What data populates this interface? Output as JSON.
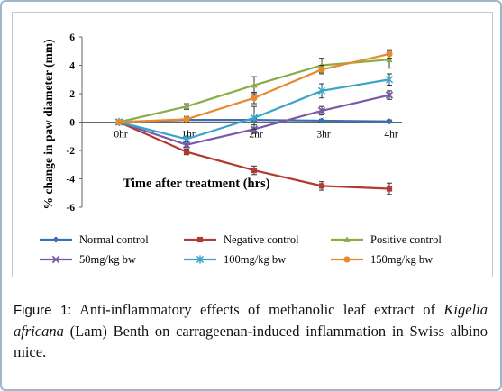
{
  "chart_data": {
    "type": "line",
    "categories": [
      "0hr",
      "1hr",
      "2hr",
      "3hr",
      "4hr"
    ],
    "xlabel": "Time after treatment (hrs)",
    "ylabel": "% change in paw diameter (mm)",
    "ylim": [
      -6,
      6
    ],
    "yticks": [
      "-6",
      "-4",
      "-2",
      "0",
      "2",
      "4",
      "6"
    ],
    "grid": false,
    "legend_position": "bottom",
    "series": [
      {
        "name": "Normal control",
        "color": "#3a6fb0",
        "marker": "diamond",
        "values": [
          0,
          0.15,
          0.15,
          0.1,
          0.05
        ],
        "errors": [
          0.1,
          0.1,
          0.1,
          0.1,
          0.1
        ]
      },
      {
        "name": "Negative control",
        "color": "#b23a32",
        "marker": "square",
        "values": [
          0,
          -2.1,
          -3.4,
          -4.5,
          -4.7
        ],
        "errors": [
          0.1,
          0.2,
          0.3,
          0.3,
          0.4
        ]
      },
      {
        "name": "Positive control",
        "color": "#8aac45",
        "marker": "triangle",
        "values": [
          0,
          1.1,
          2.6,
          4.0,
          4.4
        ],
        "errors": [
          0.1,
          0.2,
          0.6,
          0.5,
          0.6
        ]
      },
      {
        "name": "50mg/kg bw",
        "color": "#7a5aa8",
        "marker": "x",
        "values": [
          0,
          -1.6,
          -0.5,
          0.8,
          1.9
        ],
        "errors": [
          0.1,
          0.2,
          0.3,
          0.3,
          0.3
        ]
      },
      {
        "name": "100mg/kg bw",
        "color": "#3aa4c8",
        "marker": "star",
        "values": [
          0,
          -1.2,
          0.3,
          2.2,
          3.0
        ],
        "errors": [
          0.1,
          0.2,
          0.8,
          0.5,
          0.4
        ]
      },
      {
        "name": "150mg/kg bw",
        "color": "#e68a30",
        "marker": "circle",
        "values": [
          0,
          0.2,
          1.7,
          3.7,
          4.8
        ],
        "errors": [
          0.1,
          0.2,
          0.4,
          0.3,
          0.3
        ]
      }
    ]
  },
  "caption": {
    "lead": "Figure 1:",
    "text_before_italic": " Anti-inflammatory effects of methanolic leaf extract of ",
    "species": "Kigelia africana",
    "text_after_italic": " (Lam) Benth on carrageenan-induced inflammation in Swiss albino mice."
  }
}
